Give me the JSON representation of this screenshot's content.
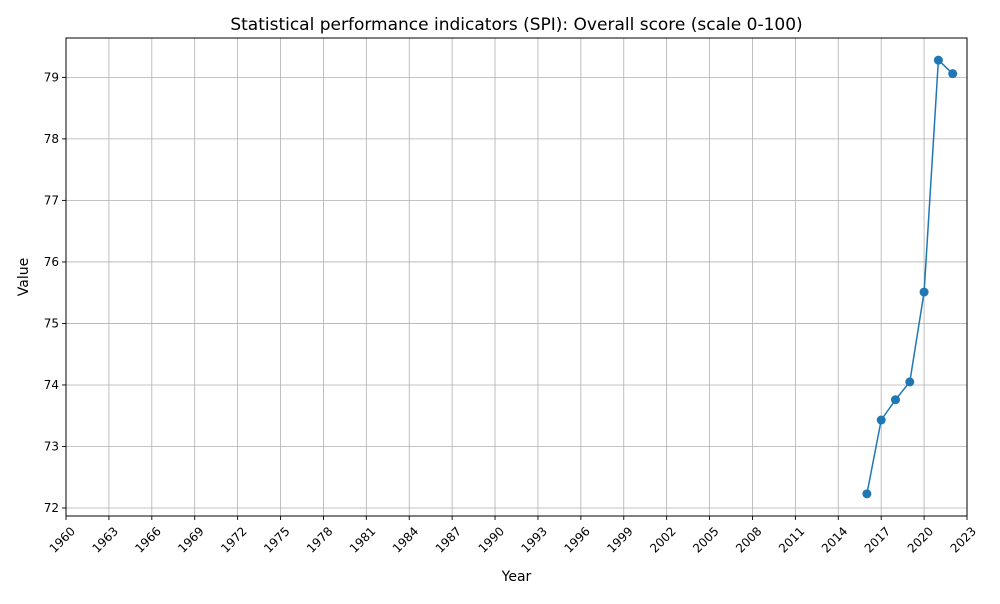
{
  "chart_data": {
    "type": "line",
    "title": "Statistical performance indicators (SPI): Overall score (scale 0-100)",
    "xlabel": "Year",
    "ylabel": "Value",
    "xlim": [
      1960,
      2023
    ],
    "ylim": [
      71.87,
      79.64
    ],
    "x_ticks": [
      "1960",
      "1963",
      "1966",
      "1969",
      "1972",
      "1975",
      "1978",
      "1981",
      "1984",
      "1987",
      "1990",
      "1993",
      "1996",
      "1999",
      "2002",
      "2005",
      "2008",
      "2011",
      "2014",
      "2017",
      "2020",
      "2023"
    ],
    "y_ticks": [
      "72",
      "73",
      "74",
      "75",
      "76",
      "77",
      "78",
      "79"
    ],
    "grid": true,
    "legend": "none",
    "series": [
      {
        "color": "#1f77b4",
        "marker": "circle",
        "x": [
          2016,
          2017,
          2018,
          2019,
          2020,
          2021,
          2022
        ],
        "y": [
          72.23,
          73.43,
          73.76,
          74.05,
          75.51,
          79.28,
          79.06
        ]
      }
    ]
  }
}
